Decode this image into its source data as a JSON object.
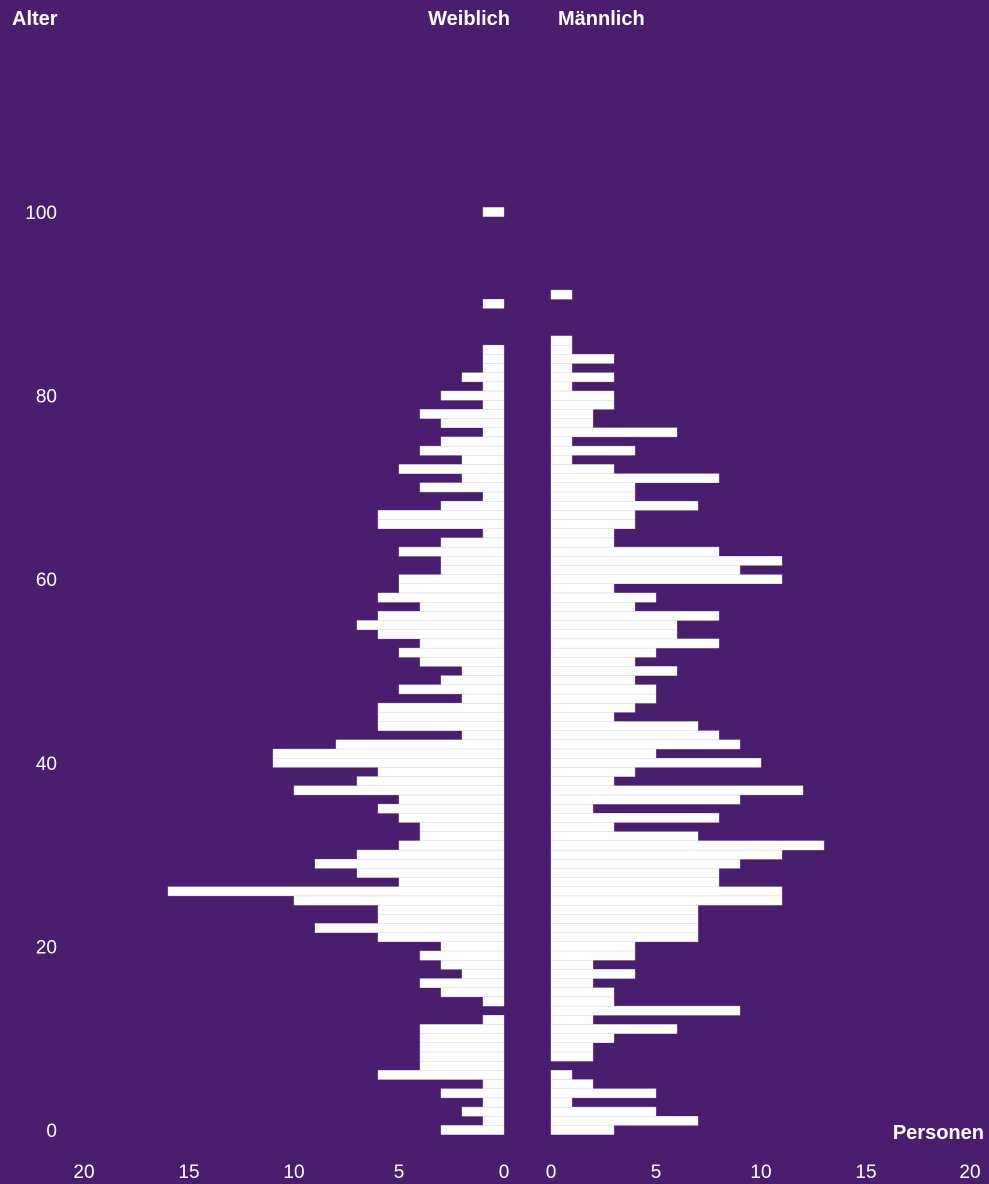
{
  "chart_data": {
    "type": "bar",
    "title": "",
    "y_axis_label": "Alter",
    "x_axis_label": "Personen",
    "left_label": "Weiblich",
    "right_label": "Männlich",
    "ylim": [
      0,
      100
    ],
    "xlim": [
      0,
      20
    ],
    "y_ticks": [
      "0",
      "20",
      "40",
      "60",
      "80",
      "100"
    ],
    "x_ticks_left": [
      "20",
      "15",
      "10",
      "5",
      "0"
    ],
    "x_ticks_right": [
      "0",
      "5",
      "10",
      "15",
      "20"
    ],
    "bar_color": "#ffffff",
    "background_color": "#4a1e6e",
    "ages": [
      0,
      1,
      2,
      3,
      4,
      5,
      6,
      7,
      8,
      9,
      10,
      11,
      12,
      13,
      14,
      15,
      16,
      17,
      18,
      19,
      20,
      21,
      22,
      23,
      24,
      25,
      26,
      27,
      28,
      29,
      30,
      31,
      32,
      33,
      34,
      35,
      36,
      37,
      38,
      39,
      40,
      41,
      42,
      43,
      44,
      45,
      46,
      47,
      48,
      49,
      50,
      51,
      52,
      53,
      54,
      55,
      56,
      57,
      58,
      59,
      60,
      61,
      62,
      63,
      64,
      65,
      66,
      67,
      68,
      69,
      70,
      71,
      72,
      73,
      74,
      75,
      76,
      77,
      78,
      79,
      80,
      81,
      82,
      83,
      84,
      85,
      86,
      87,
      88,
      89,
      90,
      91,
      92,
      93,
      94,
      95,
      96,
      97,
      98,
      99,
      100
    ],
    "series": [
      {
        "name": "Weiblich",
        "values": [
          3,
          1,
          2,
          1,
          3,
          1,
          6,
          4,
          4,
          4,
          4,
          4,
          1,
          0,
          1,
          3,
          4,
          2,
          3,
          4,
          3,
          6,
          9,
          6,
          6,
          10,
          16,
          5,
          7,
          9,
          7,
          5,
          4,
          4,
          5,
          6,
          5,
          10,
          7,
          6,
          11,
          11,
          8,
          2,
          6,
          6,
          6,
          2,
          5,
          3,
          2,
          4,
          5,
          4,
          6,
          7,
          6,
          4,
          6,
          5,
          5,
          3,
          3,
          5,
          3,
          1,
          6,
          6,
          3,
          1,
          4,
          2,
          5,
          2,
          4,
          3,
          1,
          3,
          4,
          1,
          3,
          1,
          2,
          1,
          1,
          1,
          0,
          0,
          0,
          0,
          1,
          0,
          0,
          0,
          0,
          0,
          0,
          0,
          0,
          0,
          1
        ]
      },
      {
        "name": "Männlich",
        "values": [
          3,
          7,
          5,
          1,
          5,
          2,
          1,
          0,
          2,
          2,
          3,
          6,
          2,
          9,
          3,
          3,
          2,
          4,
          2,
          4,
          4,
          7,
          7,
          7,
          7,
          11,
          11,
          8,
          8,
          9,
          11,
          13,
          7,
          3,
          8,
          2,
          9,
          12,
          3,
          4,
          10,
          5,
          9,
          8,
          7,
          3,
          4,
          5,
          5,
          4,
          6,
          4,
          5,
          8,
          6,
          6,
          8,
          4,
          5,
          3,
          11,
          9,
          11,
          8,
          3,
          3,
          4,
          4,
          7,
          4,
          4,
          8,
          3,
          1,
          4,
          1,
          6,
          2,
          2,
          3,
          3,
          1,
          3,
          1,
          3,
          1,
          1,
          0,
          0,
          0,
          0,
          1,
          0,
          0,
          0,
          0,
          0,
          0,
          0,
          0,
          0
        ]
      }
    ]
  }
}
